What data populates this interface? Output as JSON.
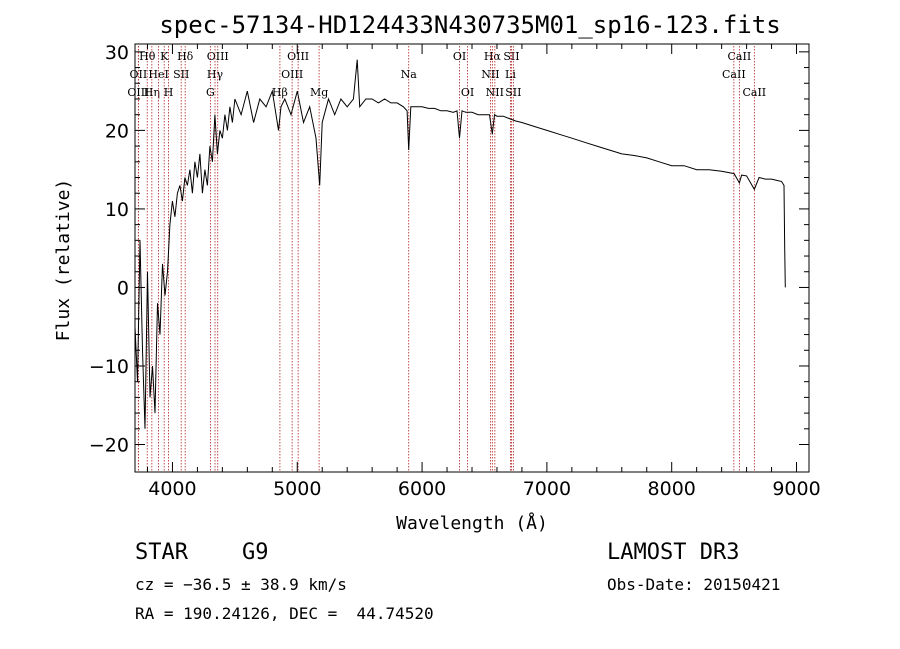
{
  "chart_data": {
    "type": "line",
    "title": "spec-57134-HD124433N430735M01_sp16-123.fits",
    "xlabel": "Wavelength (Å)",
    "ylabel": "Flux (relative)",
    "xlim": [
      3700,
      9100
    ],
    "ylim": [
      -23.5,
      31
    ],
    "xticks": [
      4000,
      5000,
      6000,
      7000,
      8000,
      9000
    ],
    "yticks": [
      -20,
      -10,
      0,
      10,
      20,
      30
    ],
    "series": [
      {
        "x": [
          3700,
          3720,
          3740,
          3760,
          3780,
          3800,
          3820,
          3840,
          3860,
          3880,
          3900,
          3920,
          3940,
          3960,
          3980,
          4000,
          4020,
          4040,
          4060,
          4080,
          4100,
          4120,
          4140,
          4160,
          4180,
          4200,
          4220,
          4240,
          4260,
          4280,
          4300,
          4320,
          4340,
          4360,
          4380,
          4400,
          4420,
          4440,
          4460,
          4480,
          4500,
          4550,
          4600,
          4650,
          4700,
          4750,
          4800,
          4850,
          4870,
          4900,
          4950,
          5000,
          5050,
          5100,
          5150,
          5180,
          5200,
          5250,
          5300,
          5350,
          5400,
          5450,
          5480,
          5500,
          5550,
          5600,
          5650,
          5700,
          5750,
          5800,
          5850,
          5880,
          5893,
          5910,
          5950,
          6000,
          6050,
          6100,
          6150,
          6200,
          6250,
          6280,
          6300,
          6320,
          6350,
          6400,
          6450,
          6500,
          6540,
          6563,
          6580,
          6600,
          6650,
          6700,
          6750,
          6800,
          6900,
          7000,
          7100,
          7200,
          7300,
          7400,
          7500,
          7600,
          7700,
          7800,
          7900,
          8000,
          8100,
          8200,
          8300,
          8400,
          8500,
          8542,
          8560,
          8600,
          8662,
          8700,
          8750,
          8800,
          8850,
          8880,
          8900,
          8905,
          8910
        ],
        "values": [
          -5,
          -12,
          6,
          -8,
          -18,
          2,
          -14,
          -10,
          -16,
          -2,
          -6,
          3,
          -1,
          2,
          8,
          11,
          9,
          12,
          13,
          11,
          14,
          13,
          15,
          12,
          16,
          14,
          17,
          12,
          15,
          13,
          18,
          16,
          22,
          17,
          20,
          19,
          22,
          20,
          23,
          21,
          24,
          22,
          25,
          21,
          24,
          23,
          25,
          20,
          23,
          24,
          22,
          25,
          21,
          23,
          19,
          13,
          21,
          24,
          22,
          24,
          23,
          24,
          29,
          23,
          24,
          24,
          23.5,
          24,
          23.5,
          23.5,
          23,
          22.5,
          17.5,
          23,
          23,
          23,
          22.8,
          22.8,
          22.5,
          22.5,
          22.3,
          22.5,
          19,
          22.5,
          22.3,
          22.3,
          22,
          22,
          22,
          19.5,
          22,
          21.8,
          21.8,
          21.5,
          21.2,
          21,
          20.5,
          20,
          19.5,
          19,
          18.5,
          18,
          17.5,
          17,
          16.8,
          16.5,
          16,
          15.5,
          15.5,
          15,
          15,
          14.8,
          14.5,
          13.3,
          14.3,
          14.2,
          12.5,
          14,
          13.8,
          13.8,
          13.6,
          13.5,
          13,
          5,
          0
        ]
      }
    ],
    "spectral_lines": [
      {
        "label": "Hθ",
        "x": 3798,
        "row": 0
      },
      {
        "label": "OII",
        "x": 3727,
        "row": 1
      },
      {
        "label": "OIII",
        "x": 3727,
        "row": 2
      },
      {
        "label": "Hη",
        "x": 3835,
        "row": 2
      },
      {
        "label": "HeI",
        "x": 3889,
        "row": 1
      },
      {
        "label": "K",
        "x": 3934,
        "row": 0
      },
      {
        "label": "H",
        "x": 3969,
        "row": 2
      },
      {
        "label": "SII",
        "x": 4070,
        "row": 1
      },
      {
        "label": "Hδ",
        "x": 4102,
        "row": 0
      },
      {
        "label": "OIII",
        "x": 4363,
        "row": 0
      },
      {
        "label": "Hγ",
        "x": 4341,
        "row": 1
      },
      {
        "label": "G",
        "x": 4304,
        "row": 2
      },
      {
        "label": "Hβ",
        "x": 4861,
        "row": 2
      },
      {
        "label": "OIII",
        "x": 5007,
        "row": 0
      },
      {
        "label": "OIII",
        "x": 4959,
        "row": 1
      },
      {
        "label": "Mg",
        "x": 5175,
        "row": 2
      },
      {
        "label": "Na",
        "x": 5893,
        "row": 1
      },
      {
        "label": "OI",
        "x": 6300,
        "row": 0
      },
      {
        "label": "OI",
        "x": 6364,
        "row": 2
      },
      {
        "label": "Hα",
        "x": 6563,
        "row": 0
      },
      {
        "label": "SII",
        "x": 6716,
        "row": 0
      },
      {
        "label": "NII",
        "x": 6548,
        "row": 1
      },
      {
        "label": "Li",
        "x": 6708,
        "row": 1
      },
      {
        "label": "NII",
        "x": 6583,
        "row": 2
      },
      {
        "label": "SII",
        "x": 6731,
        "row": 2
      },
      {
        "label": "CaII",
        "x": 8542,
        "row": 0
      },
      {
        "label": "CaII",
        "x": 8498,
        "row": 1
      },
      {
        "label": "CaII",
        "x": 8662,
        "row": 2
      }
    ]
  },
  "info": {
    "object_class": "STAR",
    "subclass": "G9",
    "survey": "LAMOST DR3",
    "cz": "cz = −36.5 ± 38.9 km/s",
    "obs_date": "Obs-Date: 20150421",
    "coords": "RA = 190.24126, DEC =  44.74520"
  },
  "colors": {
    "spectrum": "#000000",
    "line_markers": "#b22222"
  }
}
